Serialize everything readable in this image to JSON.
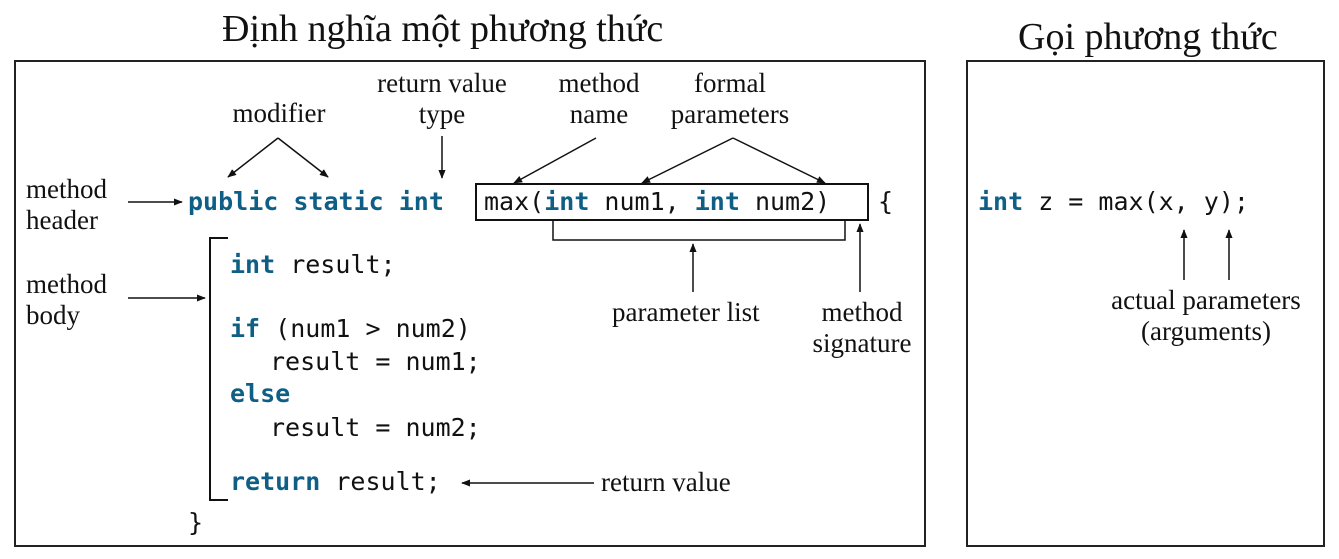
{
  "titles": {
    "define": "Định nghĩa một phương thức",
    "invoke": "Gọi phương thức"
  },
  "labels": {
    "modifier": "modifier",
    "return_type": [
      "return value",
      "type"
    ],
    "method_name": [
      "method",
      "name"
    ],
    "formal_params": [
      "formal",
      "parameters"
    ],
    "method_header": [
      "method",
      "header"
    ],
    "method_body": [
      "method",
      "body"
    ],
    "parameter_list": "parameter list",
    "method_signature": [
      "method",
      "signature"
    ],
    "return_value": "return value",
    "actual_params": [
      "actual parameters",
      "(arguments)"
    ]
  },
  "code": {
    "header": {
      "kw_public": "public",
      "kw_static": "static",
      "kw_int": "int",
      "name_open": "max(",
      "p1_type": "int",
      "p1_name": " num1, ",
      "p2_type": "int",
      "p2_name": " num2)",
      "brace_open": "{"
    },
    "body": {
      "l1_kw": "int",
      "l1_rest": " result;",
      "l2_kw": "if",
      "l2_rest": " (num1 > num2)",
      "l3": "result = num1;",
      "l4_kw": "else",
      "l5": "result = num2;",
      "l6_kw": "return",
      "l6_rest": " result;",
      "brace_close": "}"
    },
    "call": {
      "kw_int": "int",
      "rest": " z = max(x, y);"
    }
  },
  "colors": {
    "keyword": "#0f5e86",
    "text": "#111111",
    "frame": "#222222"
  }
}
